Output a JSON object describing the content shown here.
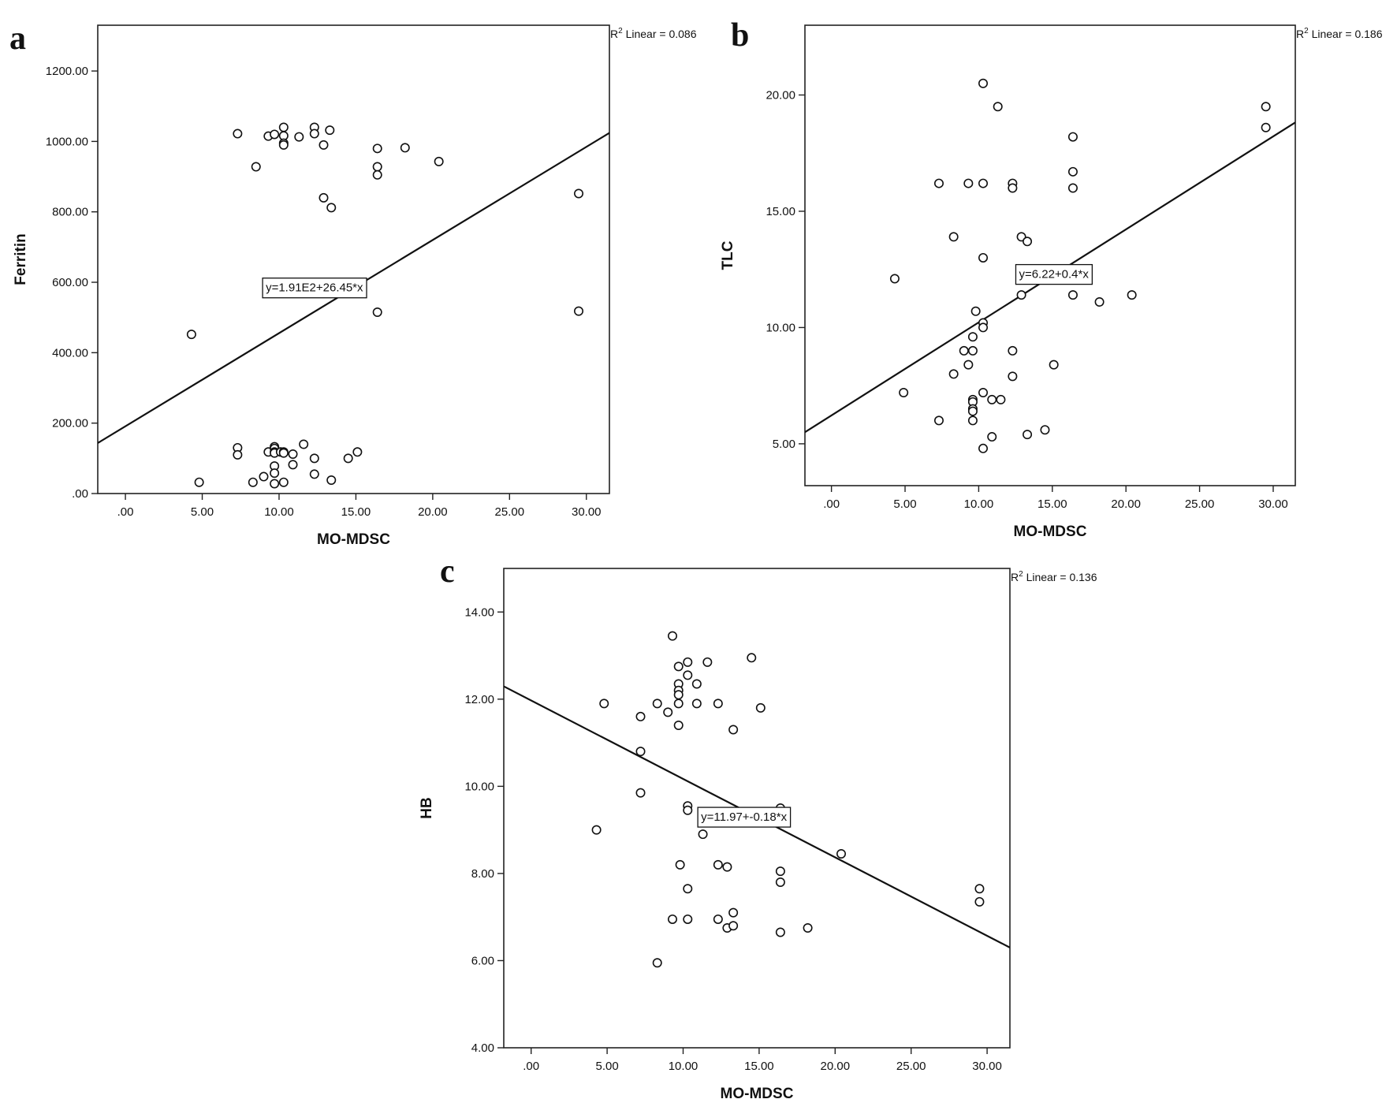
{
  "chart_data": [
    {
      "panel": "a",
      "type": "scatter",
      "xlabel": "MO-MDSC",
      "ylabel": "Ferritin",
      "xlim": [
        -1.8,
        31.5
      ],
      "ylim": [
        0,
        1330
      ],
      "xticks": [
        0,
        5,
        10,
        15,
        20,
        25,
        30
      ],
      "xtick_labels": [
        ".00",
        "5.00",
        "10.00",
        "15.00",
        "20.00",
        "25.00",
        "30.00"
      ],
      "yticks": [
        0,
        200,
        400,
        600,
        800,
        1000,
        1200
      ],
      "ytick_labels": [
        ".00",
        "200.00",
        "400.00",
        "600.00",
        "800.00",
        "1000.00",
        "1200.00"
      ],
      "r2_label": "Linear = 0.086",
      "fit": {
        "intercept": 191,
        "slope": 26.45
      },
      "equation": "y=1.91E2+26.45*x",
      "equation_pos": [
        12.3,
        585
      ],
      "points": [
        [
          4.3,
          452
        ],
        [
          4.8,
          32
        ],
        [
          7.3,
          1022
        ],
        [
          7.3,
          130
        ],
        [
          7.3,
          110
        ],
        [
          8.3,
          32
        ],
        [
          8.5,
          928
        ],
        [
          9.0,
          48
        ],
        [
          9.3,
          1015
        ],
        [
          9.3,
          118
        ],
        [
          9.7,
          1020
        ],
        [
          9.7,
          133
        ],
        [
          9.7,
          128
        ],
        [
          9.7,
          118
        ],
        [
          9.7,
          115
        ],
        [
          9.7,
          78
        ],
        [
          9.7,
          58
        ],
        [
          9.7,
          28
        ],
        [
          10.1,
          118
        ],
        [
          10.3,
          1040
        ],
        [
          10.3,
          1016
        ],
        [
          10.3,
          995
        ],
        [
          10.3,
          990
        ],
        [
          10.3,
          118
        ],
        [
          10.3,
          115
        ],
        [
          10.3,
          32
        ],
        [
          10.9,
          112
        ],
        [
          10.9,
          82
        ],
        [
          11.3,
          1013
        ],
        [
          11.6,
          140
        ],
        [
          12.3,
          1040
        ],
        [
          12.3,
          1022
        ],
        [
          12.3,
          100
        ],
        [
          12.3,
          55
        ],
        [
          12.9,
          990
        ],
        [
          12.9,
          840
        ],
        [
          13.3,
          1032
        ],
        [
          13.4,
          812
        ],
        [
          13.4,
          38
        ],
        [
          14.5,
          100
        ],
        [
          15.1,
          118
        ],
        [
          16.4,
          980
        ],
        [
          16.4,
          928
        ],
        [
          16.4,
          905
        ],
        [
          16.4,
          515
        ],
        [
          18.2,
          982
        ],
        [
          20.4,
          943
        ],
        [
          29.5,
          852
        ],
        [
          29.5,
          518
        ]
      ]
    },
    {
      "panel": "b",
      "type": "scatter",
      "xlabel": "MO-MDSC",
      "ylabel": "TLC",
      "xlim": [
        -1.8,
        31.5
      ],
      "ylim": [
        3.2,
        23.0
      ],
      "xticks": [
        0,
        5,
        10,
        15,
        20,
        25,
        30
      ],
      "xtick_labels": [
        ".00",
        "5.00",
        "10.00",
        "15.00",
        "20.00",
        "25.00",
        "30.00"
      ],
      "yticks": [
        5,
        10,
        15,
        20
      ],
      "ytick_labels": [
        "5.00",
        "10.00",
        "15.00",
        "20.00"
      ],
      "r2_label": "Linear = 0.186",
      "fit": {
        "intercept": 6.22,
        "slope": 0.4
      },
      "equation": "y=6.22+0.4*x",
      "equation_pos": [
        15.1,
        12.3
      ],
      "points": [
        [
          4.3,
          12.1
        ],
        [
          4.9,
          7.2
        ],
        [
          7.3,
          16.2
        ],
        [
          7.3,
          6.0
        ],
        [
          8.3,
          13.9
        ],
        [
          8.3,
          8.0
        ],
        [
          9.0,
          9.0
        ],
        [
          9.3,
          16.2
        ],
        [
          9.3,
          8.4
        ],
        [
          9.6,
          9.6
        ],
        [
          9.6,
          9.0
        ],
        [
          9.6,
          6.9
        ],
        [
          9.6,
          6.8
        ],
        [
          9.6,
          6.5
        ],
        [
          9.6,
          6.4
        ],
        [
          9.6,
          6.0
        ],
        [
          9.8,
          10.7
        ],
        [
          10.3,
          20.5
        ],
        [
          10.3,
          16.2
        ],
        [
          10.3,
          13.0
        ],
        [
          10.3,
          10.2
        ],
        [
          10.3,
          10.0
        ],
        [
          10.3,
          7.2
        ],
        [
          10.3,
          4.8
        ],
        [
          10.9,
          6.9
        ],
        [
          10.9,
          5.3
        ],
        [
          11.3,
          19.5
        ],
        [
          11.5,
          6.9
        ],
        [
          12.3,
          16.2
        ],
        [
          12.3,
          16.0
        ],
        [
          12.3,
          9.0
        ],
        [
          12.3,
          7.9
        ],
        [
          12.9,
          13.9
        ],
        [
          12.9,
          11.4
        ],
        [
          13.3,
          13.7
        ],
        [
          13.3,
          5.4
        ],
        [
          14.5,
          5.6
        ],
        [
          15.1,
          8.4
        ],
        [
          16.4,
          18.2
        ],
        [
          16.4,
          16.7
        ],
        [
          16.4,
          16.0
        ],
        [
          16.4,
          11.4
        ],
        [
          18.2,
          11.1
        ],
        [
          20.4,
          11.4
        ],
        [
          29.5,
          19.5
        ],
        [
          29.5,
          18.6
        ]
      ]
    },
    {
      "panel": "c",
      "type": "scatter",
      "xlabel": "MO-MDSC",
      "ylabel": "HB",
      "xlim": [
        -1.8,
        31.5
      ],
      "ylim": [
        4.0,
        15.0
      ],
      "xticks": [
        0,
        5,
        10,
        15,
        20,
        25,
        30
      ],
      "xtick_labels": [
        ".00",
        "5.00",
        "10.00",
        "15.00",
        "20.00",
        "25.00",
        "30.00"
      ],
      "yticks": [
        4,
        6,
        8,
        10,
        12,
        14
      ],
      "ytick_labels": [
        "4.00",
        "6.00",
        "8.00",
        "10.00",
        "12.00",
        "14.00"
      ],
      "r2_label": "Linear = 0.136",
      "fit": {
        "intercept": 11.97,
        "slope": -0.18
      },
      "equation": "y=11.97+-0.18*x",
      "equation_pos": [
        14.0,
        9.3
      ],
      "points": [
        [
          4.3,
          9.0
        ],
        [
          4.8,
          11.9
        ],
        [
          7.2,
          11.6
        ],
        [
          7.2,
          10.8
        ],
        [
          7.2,
          9.85
        ],
        [
          8.3,
          11.9
        ],
        [
          8.3,
          5.95
        ],
        [
          9.0,
          11.7
        ],
        [
          9.3,
          13.45
        ],
        [
          9.3,
          6.95
        ],
        [
          9.7,
          12.75
        ],
        [
          9.7,
          12.35
        ],
        [
          9.7,
          12.2
        ],
        [
          9.7,
          12.1
        ],
        [
          9.7,
          11.9
        ],
        [
          9.7,
          11.4
        ],
        [
          9.8,
          8.2
        ],
        [
          10.3,
          12.85
        ],
        [
          10.3,
          12.55
        ],
        [
          10.3,
          9.55
        ],
        [
          10.3,
          9.45
        ],
        [
          10.3,
          7.65
        ],
        [
          10.3,
          6.95
        ],
        [
          10.9,
          12.35
        ],
        [
          10.9,
          11.9
        ],
        [
          11.3,
          8.9
        ],
        [
          11.6,
          12.85
        ],
        [
          12.3,
          11.9
        ],
        [
          12.3,
          8.2
        ],
        [
          12.3,
          6.95
        ],
        [
          12.9,
          8.15
        ],
        [
          12.9,
          6.75
        ],
        [
          13.3,
          11.3
        ],
        [
          13.3,
          7.1
        ],
        [
          13.3,
          6.8
        ],
        [
          14.5,
          12.95
        ],
        [
          15.1,
          11.8
        ],
        [
          16.4,
          9.5
        ],
        [
          16.4,
          8.05
        ],
        [
          16.4,
          7.8
        ],
        [
          16.4,
          6.65
        ],
        [
          18.2,
          6.75
        ],
        [
          20.4,
          8.45
        ],
        [
          29.5,
          7.65
        ],
        [
          29.5,
          7.35
        ]
      ]
    }
  ]
}
